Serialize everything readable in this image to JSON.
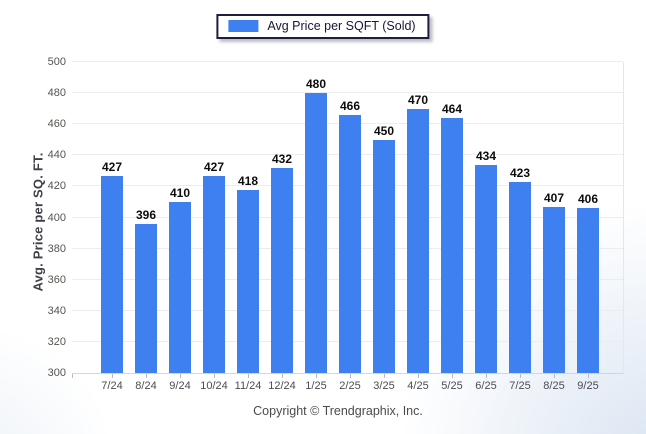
{
  "legend": {
    "label": "Avg Price per SQFT (Sold)"
  },
  "footer": {
    "copyright": "Copyright © Trendgraphix, Inc."
  },
  "colors": {
    "bar": "#3f80f0",
    "legend_border": "#1d1d40",
    "grid": "#ececf1"
  },
  "chart_data": {
    "type": "bar",
    "title": "",
    "series_name": "Avg Price per SQFT (Sold)",
    "categories": [
      "7/24",
      "8/24",
      "9/24",
      "10/24",
      "11/24",
      "12/24",
      "1/25",
      "2/25",
      "3/25",
      "4/25",
      "5/25",
      "6/25",
      "7/25",
      "8/25",
      "9/25"
    ],
    "values": [
      427,
      396,
      410,
      427,
      418,
      432,
      480,
      466,
      450,
      470,
      464,
      434,
      423,
      407,
      406
    ],
    "xlabel": "",
    "ylabel": "Avg. Price per SQ. FT.",
    "ylim": [
      300,
      500
    ],
    "yticks": [
      300,
      320,
      340,
      360,
      380,
      400,
      420,
      440,
      460,
      480,
      500
    ],
    "grid": true,
    "legend_position": "top-center",
    "value_labels": true
  }
}
